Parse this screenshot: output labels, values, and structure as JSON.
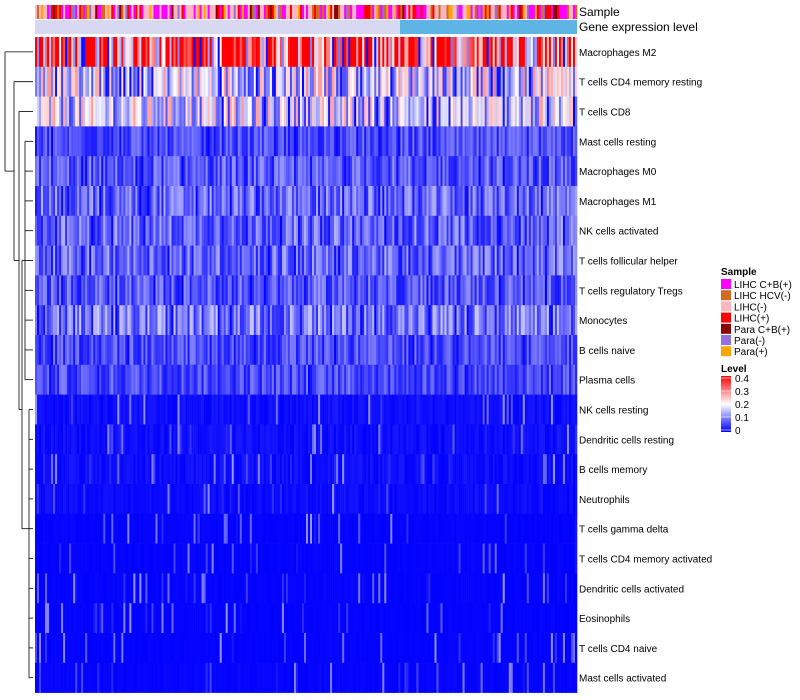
{
  "chart_data": {
    "type": "heatmap",
    "title": "",
    "column_annotations": [
      "Sample",
      "Gene expression level"
    ],
    "rows": [
      {
        "label": "Macrophages M2",
        "mean": 0.3
      },
      {
        "label": "T cells CD4 memory resting",
        "mean": 0.15
      },
      {
        "label": "T cells CD8",
        "mean": 0.14
      },
      {
        "label": "Mast cells resting",
        "mean": 0.05
      },
      {
        "label": "Macrophages M0",
        "mean": 0.06
      },
      {
        "label": "Macrophages M1",
        "mean": 0.07
      },
      {
        "label": "NK cells activated",
        "mean": 0.07
      },
      {
        "label": "T cells follicular helper",
        "mean": 0.07
      },
      {
        "label": "T cells regulatory  Tregs",
        "mean": 0.06
      },
      {
        "label": "Monocytes",
        "mean": 0.08
      },
      {
        "label": "B cells naive",
        "mean": 0.05
      },
      {
        "label": "Plasma cells",
        "mean": 0.05
      },
      {
        "label": "NK cells resting",
        "mean": 0.02
      },
      {
        "label": "Dendritic cells resting",
        "mean": 0.02
      },
      {
        "label": "B cells memory",
        "mean": 0.02
      },
      {
        "label": "Neutrophils",
        "mean": 0.015
      },
      {
        "label": "T cells gamma delta",
        "mean": 0.005
      },
      {
        "label": "T cells CD4 memory activated",
        "mean": 0.005
      },
      {
        "label": "Dendritic cells activated",
        "mean": 0.005
      },
      {
        "label": "Eosinophils",
        "mean": 0.004
      },
      {
        "label": "T cells CD4 naive",
        "mean": 0.004
      },
      {
        "label": "Mast cells activated",
        "mean": 0.006
      }
    ],
    "n_columns": 270,
    "sample_legend": {
      "title": "Sample",
      "entries": [
        {
          "label": "LIHC C+B(+)",
          "color": "#ff00ff"
        },
        {
          "label": "LIHC HCV(-)",
          "color": "#d2691e"
        },
        {
          "label": "LIHC(-)",
          "color": "#ffb6c1"
        },
        {
          "label": "LIHC(+)",
          "color": "#ff0000"
        },
        {
          "label": "Para C+B(+)",
          "color": "#8b0000"
        },
        {
          "label": "Para(-)",
          "color": "#9370db"
        },
        {
          "label": "Para(+)",
          "color": "#ffa500"
        }
      ]
    },
    "level_legend": {
      "title": "Level",
      "ticks": [
        "0.4",
        "0.3",
        "0.2",
        "0.1",
        "0"
      ],
      "range": [
        0,
        0.4
      ],
      "colors": [
        "#0000ff",
        "#ffffff",
        "#ff0000"
      ]
    },
    "gene_expression_color": "#5fb4e6"
  }
}
